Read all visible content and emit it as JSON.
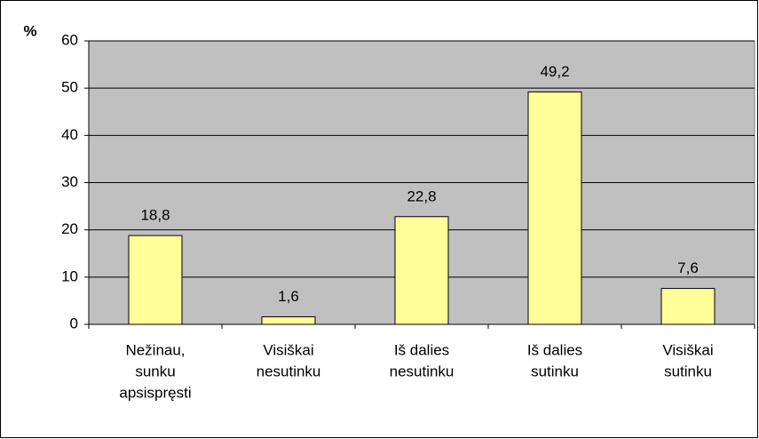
{
  "chart_data": {
    "type": "bar",
    "y_label": "%",
    "categories": [
      [
        "Nežinau,",
        "sunku",
        "apsispręsti"
      ],
      [
        "Visiškai",
        "nesutinku"
      ],
      [
        "Iš dalies",
        "nesutinku"
      ],
      [
        "Iš dalies",
        "sutinku"
      ],
      [
        "Visiškai",
        "sutinku"
      ]
    ],
    "values": [
      18.8,
      1.6,
      22.8,
      49.2,
      7.6
    ],
    "value_labels": [
      "18,8",
      "1,6",
      "22,8",
      "49,2",
      "7,6"
    ],
    "color": "#ffff99",
    "plot_background": "#c0c0c0",
    "ylim": [
      0,
      60
    ],
    "yticks": [
      0,
      10,
      20,
      30,
      40,
      50,
      60
    ],
    "grid": true
  }
}
